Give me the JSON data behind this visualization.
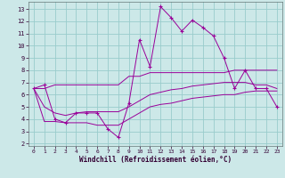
{
  "xlabel": "Windchill (Refroidissement éolien,°C)",
  "bg_color": "#cce8e8",
  "line_color": "#990099",
  "grid_color": "#99cccc",
  "x_values": [
    0,
    1,
    2,
    3,
    4,
    5,
    6,
    7,
    8,
    9,
    10,
    11,
    12,
    13,
    14,
    15,
    16,
    17,
    18,
    19,
    20,
    21,
    22,
    23
  ],
  "temp_line": [
    6.5,
    6.8,
    4.0,
    3.7,
    4.5,
    4.5,
    4.5,
    3.2,
    2.5,
    5.3,
    10.5,
    8.3,
    13.2,
    12.3,
    11.2,
    12.1,
    11.5,
    10.8,
    9.0,
    6.5,
    8.0,
    6.5,
    6.5,
    5.0
  ],
  "upper_line": [
    6.5,
    6.5,
    6.8,
    6.8,
    6.8,
    6.8,
    6.8,
    6.8,
    6.8,
    7.5,
    7.5,
    7.8,
    7.8,
    7.8,
    7.8,
    7.8,
    7.8,
    7.8,
    7.8,
    8.0,
    8.0,
    8.0,
    8.0,
    8.0
  ],
  "lower_line": [
    6.5,
    3.8,
    3.8,
    3.7,
    3.7,
    3.7,
    3.5,
    3.5,
    3.5,
    4.0,
    4.5,
    5.0,
    5.2,
    5.3,
    5.5,
    5.7,
    5.8,
    5.9,
    6.0,
    6.0,
    6.2,
    6.3,
    6.3,
    6.3
  ],
  "avg_line": [
    6.5,
    5.0,
    4.5,
    4.3,
    4.5,
    4.6,
    4.6,
    4.6,
    4.6,
    5.0,
    5.5,
    6.0,
    6.2,
    6.4,
    6.5,
    6.7,
    6.8,
    6.9,
    7.0,
    7.0,
    7.0,
    6.8,
    6.8,
    6.5
  ],
  "ylim": [
    1.8,
    13.6
  ],
  "xlim": [
    -0.5,
    23.5
  ],
  "yticks": [
    2,
    3,
    4,
    5,
    6,
    7,
    8,
    9,
    10,
    11,
    12,
    13
  ],
  "xticks": [
    0,
    1,
    2,
    3,
    4,
    5,
    6,
    7,
    8,
    9,
    10,
    11,
    12,
    13,
    14,
    15,
    16,
    17,
    18,
    19,
    20,
    21,
    22,
    23
  ]
}
